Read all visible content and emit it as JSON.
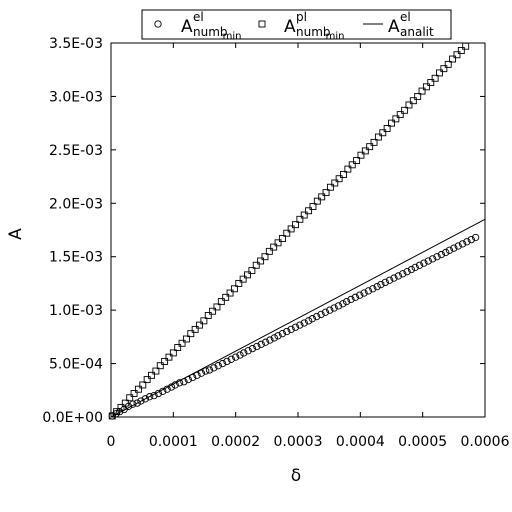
{
  "chart_data": {
    "type": "scatter",
    "xlabel": "δ",
    "ylabel": "A",
    "xlim": [
      0,
      0.0006
    ],
    "ylim": [
      0,
      0.0035
    ],
    "x_ticks": [
      "0",
      "0.0001",
      "0.0002",
      "0.0003",
      "0.0004",
      "0.0005",
      "0.0006"
    ],
    "y_ticks": [
      "0.0E+00",
      "5.0E-04",
      "1.0E-03",
      "1.5E-03",
      "2.0E-03",
      "2.5E-03",
      "3.0E-03",
      "3.5E-03"
    ],
    "grid": false,
    "legend_position": "top",
    "series": [
      {
        "legend": {
          "main": "A",
          "sup": "el",
          "sub": "numb",
          "subsub": "min"
        },
        "marker": "circle",
        "points": [
          [
            2e-06,
            1e-05
          ],
          [
            8e-06,
            3e-05
          ],
          [
            1.4e-05,
            5e-05
          ],
          [
            2.1e-05,
            7e-05
          ],
          [
            2.8e-05,
            0.0001
          ],
          [
            3.5e-05,
            0.00012
          ],
          [
            4.2e-05,
            0.00013
          ],
          [
            4.8e-05,
            0.00015
          ],
          [
            5.5e-05,
            0.00017
          ],
          [
            6.2e-05,
            0.00019
          ],
          [
            6.9e-05,
            0.0002
          ],
          [
            7.6e-05,
            0.00022
          ],
          [
            8.3e-05,
            0.00024
          ],
          [
            9e-05,
            0.00026
          ],
          [
            9.7e-05,
            0.00028
          ],
          [
            0.000103,
            0.0003
          ],
          [
            0.00011,
            0.00032
          ],
          [
            0.000117,
            0.00033
          ],
          [
            0.000124,
            0.00035
          ],
          [
            0.000131,
            0.00037
          ],
          [
            0.000138,
            0.00039
          ],
          [
            0.000145,
            0.00041
          ],
          [
            0.000152,
            0.00043
          ],
          [
            0.000158,
            0.00044
          ],
          [
            0.000165,
            0.00046
          ],
          [
            0.000172,
            0.00048
          ],
          [
            0.000179,
            0.0005
          ],
          [
            0.000186,
            0.00052
          ],
          [
            0.000193,
            0.00054
          ],
          [
            0.0002,
            0.00056
          ],
          [
            0.000207,
            0.00058
          ],
          [
            0.000213,
            0.0006
          ],
          [
            0.00022,
            0.00062
          ],
          [
            0.000227,
            0.00064
          ],
          [
            0.000234,
            0.00066
          ],
          [
            0.000241,
            0.00068
          ],
          [
            0.000248,
            0.0007
          ],
          [
            0.000255,
            0.00072
          ],
          [
            0.000262,
            0.00074
          ],
          [
            0.000268,
            0.00076
          ],
          [
            0.000275,
            0.00078
          ],
          [
            0.000282,
            0.0008
          ],
          [
            0.000289,
            0.00082
          ],
          [
            0.000296,
            0.00084
          ],
          [
            0.000303,
            0.00086
          ],
          [
            0.00031,
            0.00088
          ],
          [
            0.000317,
            0.0009
          ],
          [
            0.000323,
            0.00092
          ],
          [
            0.00033,
            0.00094
          ],
          [
            0.000337,
            0.00096
          ],
          [
            0.000344,
            0.00098
          ],
          [
            0.000351,
            0.001
          ],
          [
            0.000358,
            0.00102
          ],
          [
            0.000365,
            0.00104
          ],
          [
            0.000372,
            0.00106
          ],
          [
            0.000378,
            0.00108
          ],
          [
            0.000385,
            0.0011
          ],
          [
            0.000392,
            0.00112
          ],
          [
            0.000399,
            0.00114
          ],
          [
            0.000406,
            0.00116
          ],
          [
            0.000413,
            0.00118
          ],
          [
            0.00042,
            0.0012
          ],
          [
            0.000427,
            0.00122
          ],
          [
            0.000433,
            0.00124
          ],
          [
            0.00044,
            0.00126
          ],
          [
            0.000447,
            0.00128
          ],
          [
            0.000454,
            0.0013
          ],
          [
            0.000461,
            0.00132
          ],
          [
            0.000468,
            0.00134
          ],
          [
            0.000475,
            0.00136
          ],
          [
            0.000482,
            0.00138
          ],
          [
            0.000488,
            0.0014
          ],
          [
            0.000495,
            0.00142
          ],
          [
            0.000502,
            0.00144
          ],
          [
            0.000509,
            0.00146
          ],
          [
            0.000516,
            0.00148
          ],
          [
            0.000523,
            0.0015
          ],
          [
            0.00053,
            0.00152
          ],
          [
            0.000537,
            0.00154
          ],
          [
            0.000543,
            0.00156
          ],
          [
            0.00055,
            0.00158
          ],
          [
            0.000557,
            0.0016
          ],
          [
            0.000564,
            0.00162
          ],
          [
            0.000571,
            0.00164
          ],
          [
            0.000578,
            0.00166
          ],
          [
            0.000585,
            0.00168
          ]
        ]
      },
      {
        "legend": {
          "main": "A",
          "sup": "pl",
          "sub": "numb",
          "subsub": "min"
        },
        "marker": "square",
        "points": [
          [
            2e-06,
            1e-05
          ],
          [
            9e-06,
            5e-05
          ],
          [
            1.6e-05,
            9e-05
          ],
          [
            2.3e-05,
            0.00013
          ],
          [
            3e-05,
            0.00018
          ],
          [
            3.7e-05,
            0.00022
          ],
          [
            4.4e-05,
            0.00026
          ],
          [
            5.1e-05,
            0.0003
          ],
          [
            5.8e-05,
            0.00035
          ],
          [
            6.5e-05,
            0.00039
          ],
          [
            7.2e-05,
            0.00043
          ],
          [
            7.9e-05,
            0.00048
          ],
          [
            8.6e-05,
            0.00052
          ],
          [
            9.3e-05,
            0.00056
          ],
          [
            0.0001,
            0.0006
          ],
          [
            0.000107,
            0.00065
          ],
          [
            0.000114,
            0.00069
          ],
          [
            0.000121,
            0.00073
          ],
          [
            0.000128,
            0.00078
          ],
          [
            0.000135,
            0.00082
          ],
          [
            0.000142,
            0.00086
          ],
          [
            0.000149,
            0.0009
          ],
          [
            0.000156,
            0.00095
          ],
          [
            0.000163,
            0.00099
          ],
          [
            0.00017,
            0.00103
          ],
          [
            0.000177,
            0.00108
          ],
          [
            0.000184,
            0.00112
          ],
          [
            0.000191,
            0.00116
          ],
          [
            0.000198,
            0.0012
          ],
          [
            0.000205,
            0.00125
          ],
          [
            0.000212,
            0.00129
          ],
          [
            0.000219,
            0.00133
          ],
          [
            0.000226,
            0.00137
          ],
          [
            0.000233,
            0.00142
          ],
          [
            0.00024,
            0.00146
          ],
          [
            0.000247,
            0.0015
          ],
          [
            0.000254,
            0.00155
          ],
          [
            0.000261,
            0.00159
          ],
          [
            0.000268,
            0.00163
          ],
          [
            0.000275,
            0.00167
          ],
          [
            0.000282,
            0.00172
          ],
          [
            0.000289,
            0.00176
          ],
          [
            0.000296,
            0.0018
          ],
          [
            0.000303,
            0.00185
          ],
          [
            0.00031,
            0.00189
          ],
          [
            0.000317,
            0.00193
          ],
          [
            0.000324,
            0.00197
          ],
          [
            0.000331,
            0.00202
          ],
          [
            0.000338,
            0.00206
          ],
          [
            0.000345,
            0.0021
          ],
          [
            0.000352,
            0.00215
          ],
          [
            0.000359,
            0.00219
          ],
          [
            0.000366,
            0.00223
          ],
          [
            0.000373,
            0.00227
          ],
          [
            0.00038,
            0.00232
          ],
          [
            0.000387,
            0.00236
          ],
          [
            0.000394,
            0.0024
          ],
          [
            0.000401,
            0.00245
          ],
          [
            0.000408,
            0.00249
          ],
          [
            0.000415,
            0.00253
          ],
          [
            0.000422,
            0.00257
          ],
          [
            0.000429,
            0.00262
          ],
          [
            0.000436,
            0.00266
          ],
          [
            0.000443,
            0.0027
          ],
          [
            0.00045,
            0.00275
          ],
          [
            0.000457,
            0.00279
          ],
          [
            0.000464,
            0.00283
          ],
          [
            0.000471,
            0.00287
          ],
          [
            0.000478,
            0.00292
          ],
          [
            0.000485,
            0.00296
          ],
          [
            0.000492,
            0.003
          ],
          [
            0.000499,
            0.00305
          ],
          [
            0.000506,
            0.00309
          ],
          [
            0.000513,
            0.00313
          ],
          [
            0.00052,
            0.00317
          ],
          [
            0.000527,
            0.00322
          ],
          [
            0.000534,
            0.00326
          ],
          [
            0.000541,
            0.0033
          ],
          [
            0.000548,
            0.00335
          ],
          [
            0.000555,
            0.00339
          ],
          [
            0.000562,
            0.00343
          ],
          [
            0.000569,
            0.00347
          ],
          [
            0.000576,
            0.00352
          ],
          [
            0.000583,
            0.00356
          ]
        ]
      },
      {
        "legend": {
          "main": "A",
          "sup": "el",
          "sub": "analit",
          "subsub": ""
        },
        "marker": "line",
        "points": [
          [
            0.0,
            0.0
          ],
          [
            0.0006,
            0.00185
          ]
        ]
      }
    ]
  }
}
